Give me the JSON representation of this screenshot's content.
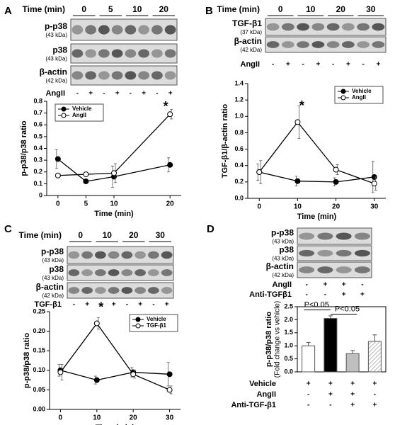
{
  "panels": [
    {
      "letter": "A",
      "time_label": "Time (min)",
      "times": [
        "0",
        "5",
        "10",
        "20"
      ],
      "blots": [
        {
          "label": "p-p38",
          "kda": "(43 kDa)"
        },
        {
          "label": "p38",
          "kda": "(43 kDa)"
        },
        {
          "label": "β-actin",
          "kda": "(42 kDa)"
        }
      ],
      "treatments": [
        {
          "label": "AngII",
          "signs": [
            "-",
            "+",
            "-",
            "+",
            "-",
            "+",
            "-",
            "+"
          ]
        }
      ]
    },
    {
      "letter": "B",
      "time_label": "Time (min)",
      "times": [
        "0",
        "10",
        "20",
        "30"
      ],
      "blots": [
        {
          "label": "TGF-β1",
          "kda": "(37 kDa)"
        },
        {
          "label": "β-actin",
          "kda": "(42 kDa)"
        }
      ],
      "treatments": [
        {
          "label": "AngII",
          "signs": [
            "-",
            "+",
            "-",
            "+",
            "-",
            "+",
            "-",
            "+"
          ]
        }
      ]
    },
    {
      "letter": "C",
      "time_label": "Time (min)",
      "times": [
        "0",
        "10",
        "20",
        "30"
      ],
      "blots": [
        {
          "label": "p-p38",
          "kda": "(43 kDa)"
        },
        {
          "label": "p38",
          "kda": "(43 kDa)"
        },
        {
          "label": "β-actin",
          "kda": "(42 kDa)"
        }
      ],
      "treatments": [
        {
          "label": "TGF-β1",
          "signs": [
            "-",
            "+",
            "-",
            "+",
            "-",
            "+",
            "-",
            "+"
          ]
        }
      ]
    },
    {
      "letter": "D",
      "blots": [
        {
          "label": "p-p38",
          "kda": "(43 kDa)"
        },
        {
          "label": "p38",
          "kda": "(43 kDa)"
        },
        {
          "label": "β-actin",
          "kda": "(42 kDa)"
        }
      ],
      "treatments": [
        {
          "label": "AngII",
          "signs": [
            "-",
            "+",
            "+",
            "-"
          ]
        },
        {
          "label": "Anti-TGFβ1",
          "signs": [
            "-",
            "-",
            "+",
            "+"
          ]
        }
      ]
    }
  ],
  "chart_data": [
    {
      "type": "line",
      "xlabel": "Time (min)",
      "ylabel": "p-p38/p38 ratio",
      "x": [
        0,
        5,
        10,
        20
      ],
      "xlim": [
        -2,
        22
      ],
      "xticks": [
        0,
        5,
        10,
        20
      ],
      "ylim": [
        0,
        0.8
      ],
      "yticks": [
        0,
        0.1,
        0.2,
        0.3,
        0.4,
        0.5,
        0.6,
        0.7,
        0.8
      ],
      "legend": "upper left",
      "annotations": [
        "*"
      ],
      "series": [
        {
          "name": "Vehicle",
          "color": "#000000",
          "marker_fill": "#000000",
          "values": [
            0.31,
            0.12,
            0.16,
            0.26
          ],
          "errors": [
            0.08,
            0.01,
            0.09,
            0.06
          ]
        },
        {
          "name": "AngII",
          "color": "#000000",
          "marker_fill": "#ffffff",
          "values": [
            0.17,
            0.18,
            0.19,
            0.69
          ],
          "errors": [
            0.01,
            0.01,
            0.08,
            0.04
          ]
        }
      ]
    },
    {
      "type": "line",
      "xlabel": "Time (min)",
      "ylabel": "TGF-β1/β-actin ratio",
      "x": [
        0,
        10,
        20,
        30
      ],
      "xlim": [
        -3,
        33
      ],
      "xticks": [
        0,
        10,
        20,
        30
      ],
      "ylim": [
        0,
        1.4
      ],
      "yticks": [
        {
          "value": 0,
          "label": "0.0"
        },
        0.2,
        0.4,
        0.6,
        0.8,
        {
          "value": 1,
          "label": "1.0"
        },
        1.2,
        1.4
      ],
      "legend": "upper right",
      "annotations": [
        "*"
      ],
      "series": [
        {
          "name": "Vehicle",
          "color": "#000000",
          "marker_fill": "#000000",
          "values": [
            0.32,
            0.21,
            0.2,
            0.26
          ],
          "errors": [
            0.1,
            0.06,
            0.05,
            0.19
          ]
        },
        {
          "name": "AngII",
          "color": "#000000",
          "marker_fill": "#ffffff",
          "values": [
            0.32,
            0.93,
            0.35,
            0.18
          ],
          "errors": [
            0.14,
            0.2,
            0.06,
            0.08
          ]
        }
      ]
    },
    {
      "type": "line",
      "xlabel": "Time (min)",
      "ylabel": "p-p38/p38 ratio",
      "x": [
        0,
        10,
        20,
        30
      ],
      "xlim": [
        -3,
        33
      ],
      "xticks": [
        0,
        10,
        20,
        30
      ],
      "ylim": [
        0,
        0.25
      ],
      "yticks": [
        {
          "value": 0,
          "label": "0.00"
        },
        0.05,
        {
          "value": 0.1,
          "label": "0.10"
        },
        0.15,
        {
          "value": 0.2,
          "label": "0.20"
        },
        0.25
      ],
      "legend": "upper right",
      "annotations": [
        "*"
      ],
      "series": [
        {
          "name": "Vehicle",
          "color": "#000000",
          "marker_fill": "#000000",
          "values": [
            0.1,
            0.075,
            0.095,
            0.09
          ],
          "errors": [
            0.015,
            0.01,
            0.012,
            0.03
          ]
        },
        {
          "name": "TGF-β1",
          "color": "#000000",
          "marker_fill": "#ffffff",
          "values": [
            0.095,
            0.22,
            0.09,
            0.05
          ],
          "errors": [
            0.02,
            0.015,
            0.01,
            0.01
          ]
        }
      ]
    },
    {
      "type": "bar",
      "ylabel": "p-p38/p38 ratio",
      "ylabel2": "(Fold change vs vehicle)",
      "categories": [
        null,
        null,
        null,
        null
      ],
      "values": [
        1.0,
        2.05,
        0.7,
        1.17
      ],
      "errors": [
        0.13,
        0.1,
        0.12,
        0.25
      ],
      "colors": [
        "#ffffff",
        "#000000",
        "#bfbfbf",
        "#ffffff"
      ],
      "patterns": [
        "solid",
        "solid",
        "solid",
        "hatch"
      ],
      "ylim": [
        0,
        2.5
      ],
      "yticks": [
        {
          "value": 0,
          "label": "0.0"
        },
        0.5,
        {
          "value": 1,
          "label": "1.0"
        },
        1.5,
        {
          "value": 2,
          "label": "2.0"
        },
        2.5
      ],
      "annotations": [
        "P<0.05",
        "P<0.05"
      ],
      "conditions": [
        {
          "label": "Vehicle",
          "signs": [
            "+",
            "+",
            "+",
            "+"
          ]
        },
        {
          "label": "AngII",
          "signs": [
            "-",
            "+",
            "+",
            "-"
          ]
        },
        {
          "label": "Anti-TGF-β1",
          "signs": [
            "-",
            "-",
            "+",
            "+"
          ]
        }
      ]
    }
  ]
}
